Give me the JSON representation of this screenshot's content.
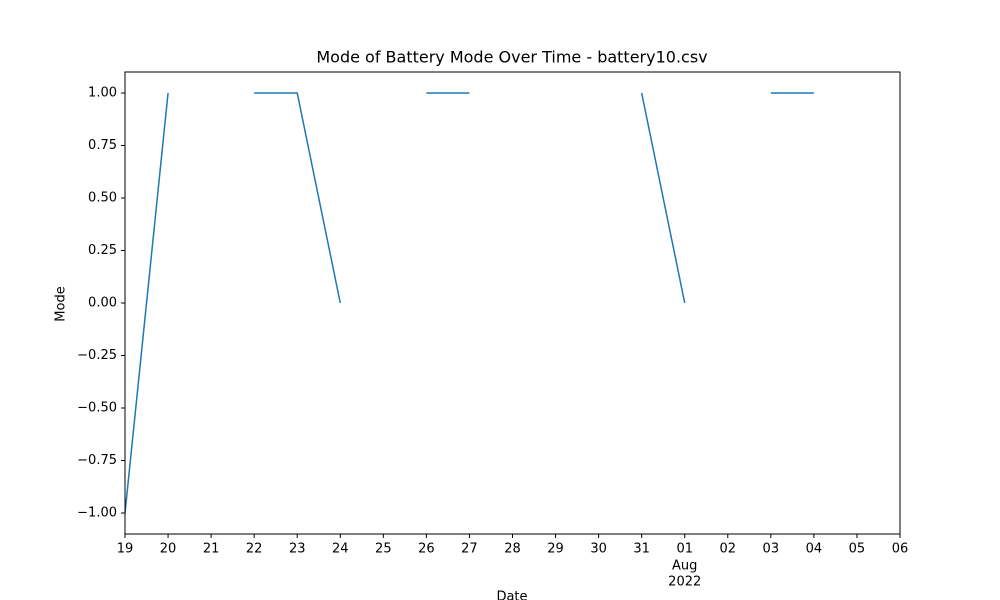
{
  "chart_data": {
    "type": "line",
    "title": "Mode of Battery Mode Over Time - battery10.csv",
    "x_label": "Date",
    "y_label": "Mode",
    "categories": [
      "19",
      "20",
      "21",
      "22",
      "23",
      "24",
      "25",
      "26",
      "27",
      "28",
      "29",
      "30",
      "31",
      {
        "label": "01",
        "sublabels": [
          "Aug",
          "2022"
        ]
      },
      "02",
      "03",
      "04",
      "05",
      "06"
    ],
    "series": [
      {
        "name": "Mode",
        "color": "#1f77b4",
        "values": [
          -1,
          1,
          null,
          1,
          1,
          0,
          null,
          1,
          1,
          null,
          null,
          null,
          1,
          0,
          null,
          1,
          1,
          null,
          null
        ]
      }
    ],
    "ylim": [
      -1.1,
      1.1
    ],
    "yticks": [
      {
        "value": -1,
        "label": "−1.00"
      },
      {
        "value": -0.75,
        "label": "−0.75"
      },
      {
        "value": -0.5,
        "label": "−0.50"
      },
      {
        "value": -0.25,
        "label": "−0.25"
      },
      {
        "value": 0,
        "label": "0.00"
      },
      {
        "value": 0.25,
        "label": "0.25"
      },
      {
        "value": 0.5,
        "label": "0.50"
      },
      {
        "value": 0.75,
        "label": "0.75"
      },
      {
        "value": 1,
        "label": "1.00"
      }
    ],
    "grid": false
  }
}
